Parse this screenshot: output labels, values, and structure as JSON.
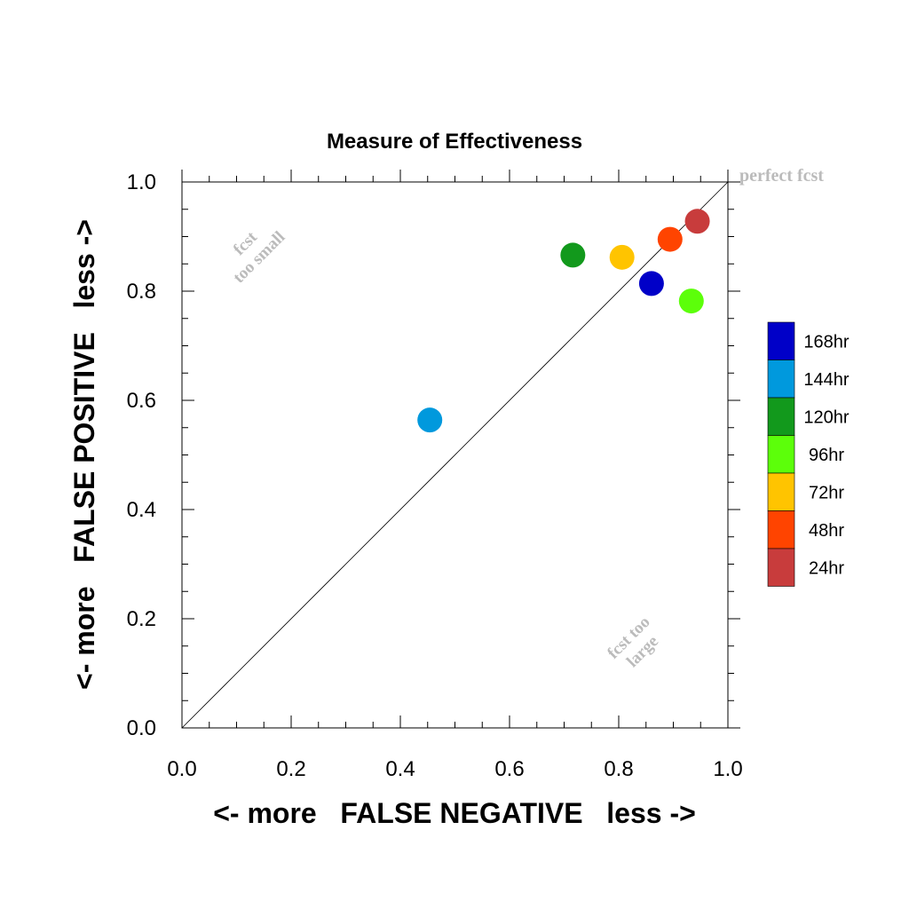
{
  "chart_data": {
    "type": "scatter",
    "title": "Measure of Effectiveness",
    "xlabel": "<- more   FALSE NEGATIVE   less ->",
    "ylabel": "<- more   FALSE POSITIVE   less ->",
    "xlim": [
      0.0,
      1.0
    ],
    "ylim": [
      0.0,
      1.0
    ],
    "xticks": [
      "0.0",
      "0.2",
      "0.4",
      "0.6",
      "0.8",
      "1.0"
    ],
    "yticks": [
      "0.0",
      "0.2",
      "0.4",
      "0.6",
      "0.8",
      "1.0"
    ],
    "grid": false,
    "legend_position": "right",
    "reference_line": {
      "from": [
        0,
        0
      ],
      "to": [
        1,
        1
      ]
    },
    "annotations": {
      "perfect": "perfect fcst",
      "small_line1": "fcst",
      "small_line2": "too small",
      "large_line1": "fcst too",
      "large_line2": "large"
    },
    "series": [
      {
        "name": "168hr",
        "color": "#0000c8",
        "x": 0.86,
        "y": 0.814
      },
      {
        "name": "144hr",
        "color": "#0099dd",
        "x": 0.454,
        "y": 0.564
      },
      {
        "name": "120hr",
        "color": "#12991c",
        "x": 0.716,
        "y": 0.866
      },
      {
        "name": "96hr",
        "color": "#5cff0a",
        "x": 0.933,
        "y": 0.782
      },
      {
        "name": "72hr",
        "color": "#ffc400",
        "x": 0.806,
        "y": 0.862
      },
      {
        "name": "48hr",
        "color": "#ff4400",
        "x": 0.894,
        "y": 0.895
      },
      {
        "name": "24hr",
        "color": "#c83c3c",
        "x": 0.944,
        "y": 0.928
      }
    ]
  }
}
